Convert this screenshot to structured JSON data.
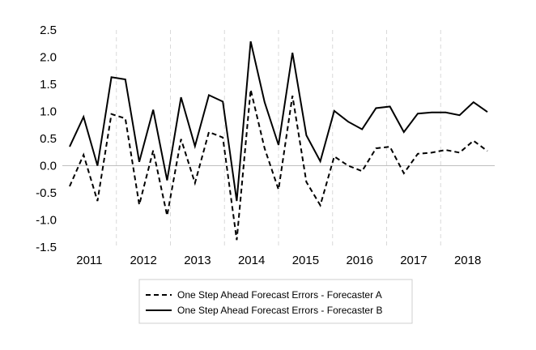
{
  "chart_data": {
    "type": "line",
    "title": "",
    "xlabel": "",
    "ylabel": "",
    "ylim": [
      -1.5,
      2.5
    ],
    "yticks": [
      "2.5",
      "2.0",
      "1.5",
      "1.0",
      "0.5",
      "0.0",
      "-0.5",
      "-1.0",
      "-1.5"
    ],
    "ytick_values": [
      2.5,
      2.0,
      1.5,
      1.0,
      0.5,
      0.0,
      -0.5,
      -1.0,
      -1.5
    ],
    "x_year_labels": [
      "2011",
      "2012",
      "2013",
      "2014",
      "2015",
      "2016",
      "2017",
      "2018"
    ],
    "points_per_year": 4,
    "grid": "vertical",
    "legend_position": "bottom",
    "series": [
      {
        "name": "One Step Ahead Forecast Errors - Forecaster A",
        "style": "dashed",
        "color": "#000000",
        "values": [
          -0.38,
          0.2,
          -0.65,
          0.95,
          0.87,
          -0.72,
          0.28,
          -0.92,
          0.49,
          -0.32,
          0.62,
          0.52,
          -1.37,
          1.4,
          0.32,
          -0.44,
          1.29,
          -0.3,
          -0.73,
          0.17,
          0.0,
          -0.1,
          0.32,
          0.35,
          -0.14,
          0.22,
          0.24,
          0.29,
          0.24,
          0.46,
          0.27
        ]
      },
      {
        "name": "One Step Ahead Forecast Errors - Forecaster B",
        "style": "solid",
        "color": "#000000",
        "values": [
          0.35,
          0.9,
          0.0,
          1.63,
          1.59,
          0.07,
          1.03,
          -0.27,
          1.26,
          0.36,
          1.3,
          1.18,
          -0.65,
          2.29,
          1.17,
          0.38,
          2.08,
          0.56,
          0.08,
          1.01,
          0.81,
          0.67,
          1.06,
          1.09,
          0.62,
          0.96,
          0.98,
          0.98,
          0.93,
          1.17,
          0.99
        ]
      }
    ]
  }
}
